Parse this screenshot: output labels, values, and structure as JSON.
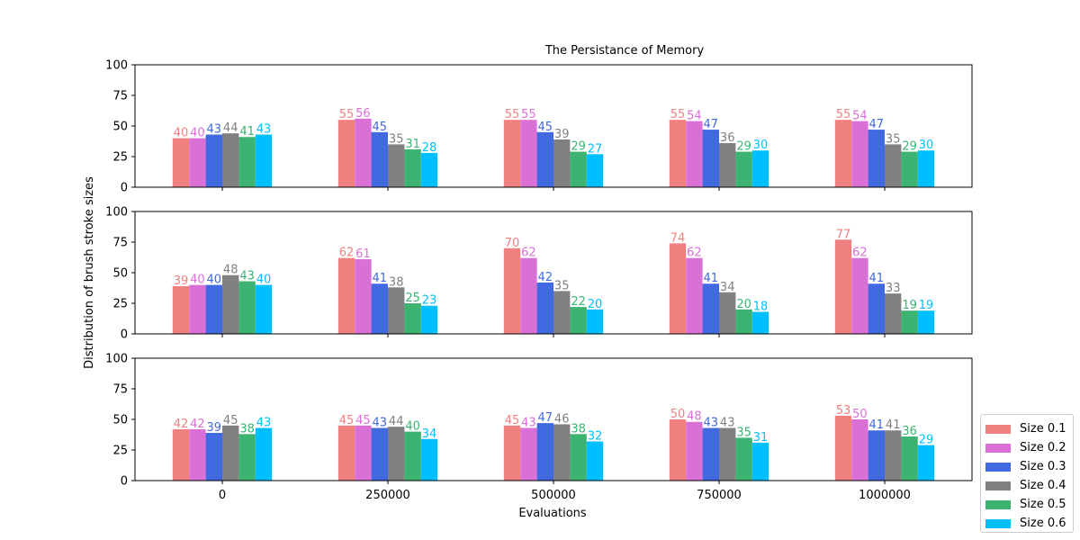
{
  "chart_data": {
    "type": "bar",
    "title": "The Persistance of Memory",
    "xlabel": "Evaluations",
    "ylabel": "Distribution of brush stroke sizes",
    "categories": [
      "0",
      "250000",
      "500000",
      "750000",
      "1000000"
    ],
    "ylim": [
      0,
      100
    ],
    "yticks": [
      "0",
      "25",
      "50",
      "75",
      "100"
    ],
    "legend_position": "outside-bottom-right",
    "colors": [
      "#f08080",
      "#da70d6",
      "#4169e1",
      "#808080",
      "#3cb371",
      "#00bfff"
    ],
    "legend": [
      "Size 0.1",
      "Size 0.2",
      "Size 0.3",
      "Size 0.4",
      "Size 0.5",
      "Size 0.6"
    ],
    "panels": [
      {
        "series": [
          {
            "name": "Size 0.1",
            "values": [
              40,
              55,
              55,
              55,
              55
            ]
          },
          {
            "name": "Size 0.2",
            "values": [
              40,
              56,
              55,
              54,
              54
            ]
          },
          {
            "name": "Size 0.3",
            "values": [
              43,
              45,
              45,
              47,
              47
            ]
          },
          {
            "name": "Size 0.4",
            "values": [
              44,
              35,
              39,
              36,
              35
            ]
          },
          {
            "name": "Size 0.5",
            "values": [
              41,
              31,
              29,
              29,
              29
            ]
          },
          {
            "name": "Size 0.6",
            "values": [
              43,
              28,
              27,
              30,
              30
            ]
          }
        ]
      },
      {
        "series": [
          {
            "name": "Size 0.1",
            "values": [
              39,
              62,
              70,
              74,
              77
            ]
          },
          {
            "name": "Size 0.2",
            "values": [
              40,
              61,
              62,
              62,
              62
            ]
          },
          {
            "name": "Size 0.3",
            "values": [
              40,
              41,
              42,
              41,
              41
            ]
          },
          {
            "name": "Size 0.4",
            "values": [
              48,
              38,
              35,
              34,
              33
            ]
          },
          {
            "name": "Size 0.5",
            "values": [
              43,
              25,
              22,
              20,
              19
            ]
          },
          {
            "name": "Size 0.6",
            "values": [
              40,
              23,
              20,
              18,
              19
            ]
          }
        ]
      },
      {
        "series": [
          {
            "name": "Size 0.1",
            "values": [
              42,
              45,
              45,
              50,
              53
            ]
          },
          {
            "name": "Size 0.2",
            "values": [
              42,
              45,
              43,
              48,
              50
            ]
          },
          {
            "name": "Size 0.3",
            "values": [
              39,
              43,
              47,
              43,
              41
            ]
          },
          {
            "name": "Size 0.4",
            "values": [
              45,
              44,
              46,
              43,
              41
            ]
          },
          {
            "name": "Size 0.5",
            "values": [
              38,
              40,
              38,
              35,
              36
            ]
          },
          {
            "name": "Size 0.6",
            "values": [
              43,
              34,
              32,
              31,
              29
            ]
          }
        ]
      }
    ]
  }
}
